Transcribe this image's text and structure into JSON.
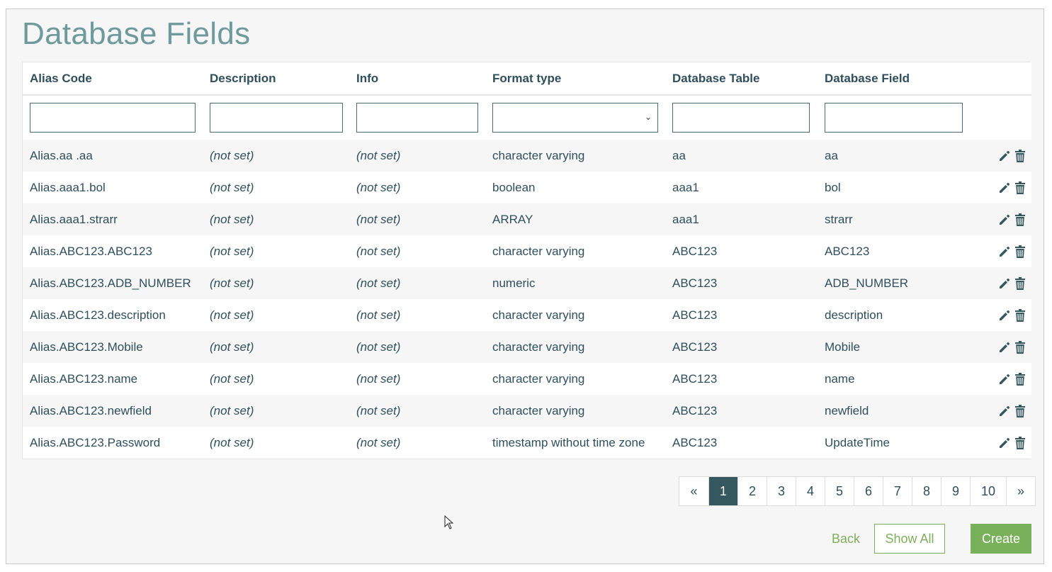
{
  "page": {
    "title": "Database Fields"
  },
  "table": {
    "columns": [
      "Alias Code",
      "Description",
      "Info",
      "Format type",
      "Database Table",
      "Database Field"
    ],
    "rows": [
      {
        "alias": "Alias.aa .aa",
        "description": "(not set)",
        "info": "(not set)",
        "format": "character varying",
        "table": "aa",
        "field": "aa"
      },
      {
        "alias": "Alias.aaa1.bol",
        "description": "(not set)",
        "info": "(not set)",
        "format": "boolean",
        "table": "aaa1",
        "field": "bol"
      },
      {
        "alias": "Alias.aaa1.strarr",
        "description": "(not set)",
        "info": "(not set)",
        "format": "ARRAY",
        "table": "aaa1",
        "field": "strarr"
      },
      {
        "alias": "Alias.ABC123.ABC123",
        "description": "(not set)",
        "info": "(not set)",
        "format": "character varying",
        "table": "ABC123",
        "field": "ABC123"
      },
      {
        "alias": "Alias.ABC123.ADB_NUMBER",
        "description": "(not set)",
        "info": "(not set)",
        "format": "numeric",
        "table": "ABC123",
        "field": "ADB_NUMBER"
      },
      {
        "alias": "Alias.ABC123.description",
        "description": "(not set)",
        "info": "(not set)",
        "format": "character varying",
        "table": "ABC123",
        "field": "description"
      },
      {
        "alias": "Alias.ABC123.Mobile",
        "description": "(not set)",
        "info": "(not set)",
        "format": "character varying",
        "table": "ABC123",
        "field": "Mobile"
      },
      {
        "alias": "Alias.ABC123.name",
        "description": "(not set)",
        "info": "(not set)",
        "format": "character varying",
        "table": "ABC123",
        "field": "name"
      },
      {
        "alias": "Alias.ABC123.newfield",
        "description": "(not set)",
        "info": "(not set)",
        "format": "character varying",
        "table": "ABC123",
        "field": "newfield"
      },
      {
        "alias": "Alias.ABC123.Password",
        "description": "(not set)",
        "info": "(not set)",
        "format": "timestamp without time zone",
        "table": "ABC123",
        "field": "UpdateTime"
      }
    ],
    "row_icons": [
      "pencil-icon",
      "trash-icon"
    ]
  },
  "pagination": {
    "prev": "«",
    "pages": [
      "1",
      "2",
      "3",
      "4",
      "5",
      "6",
      "7",
      "8",
      "9",
      "10"
    ],
    "next": "»",
    "active": "1"
  },
  "buttons": {
    "back": "Back",
    "show_all": "Show All",
    "create": "Create"
  },
  "colors": {
    "title": "#6f9a9c",
    "text": "#2f4f5c",
    "not_set": "#c0392b",
    "active_page": "#35585f",
    "green": "#79b15a"
  }
}
